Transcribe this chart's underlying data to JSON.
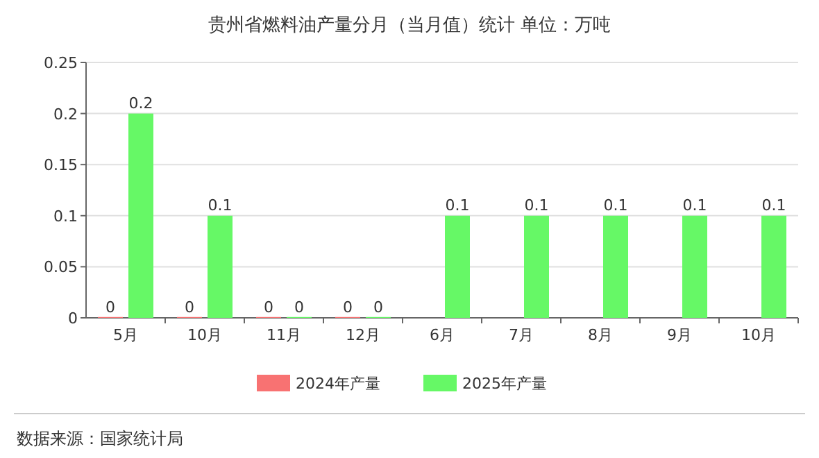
{
  "chart_data": {
    "type": "bar",
    "title": "贵州省燃料油产量分月（当月值）统计  单位：万吨",
    "categories": [
      "5月",
      "10月",
      "11月",
      "12月",
      "6月",
      "7月",
      "8月",
      "9月",
      "10月"
    ],
    "series": [
      {
        "name": "2024年产量",
        "color": "#f87272",
        "values": [
          0,
          0,
          0,
          0,
          null,
          null,
          null,
          null,
          null
        ]
      },
      {
        "name": "2025年产量",
        "color": "#66f866",
        "values": [
          0.2,
          0.1,
          0,
          0,
          0.1,
          0.1,
          0.1,
          0.1,
          0.1
        ]
      }
    ],
    "ylim": [
      0,
      0.25
    ],
    "yticks": [
      0,
      0.05,
      0.1,
      0.15,
      0.2,
      0.25
    ],
    "grid": "y",
    "legend": "bottom",
    "data_labels": true,
    "annotations": [
      "数据来源：国家统计局"
    ]
  }
}
